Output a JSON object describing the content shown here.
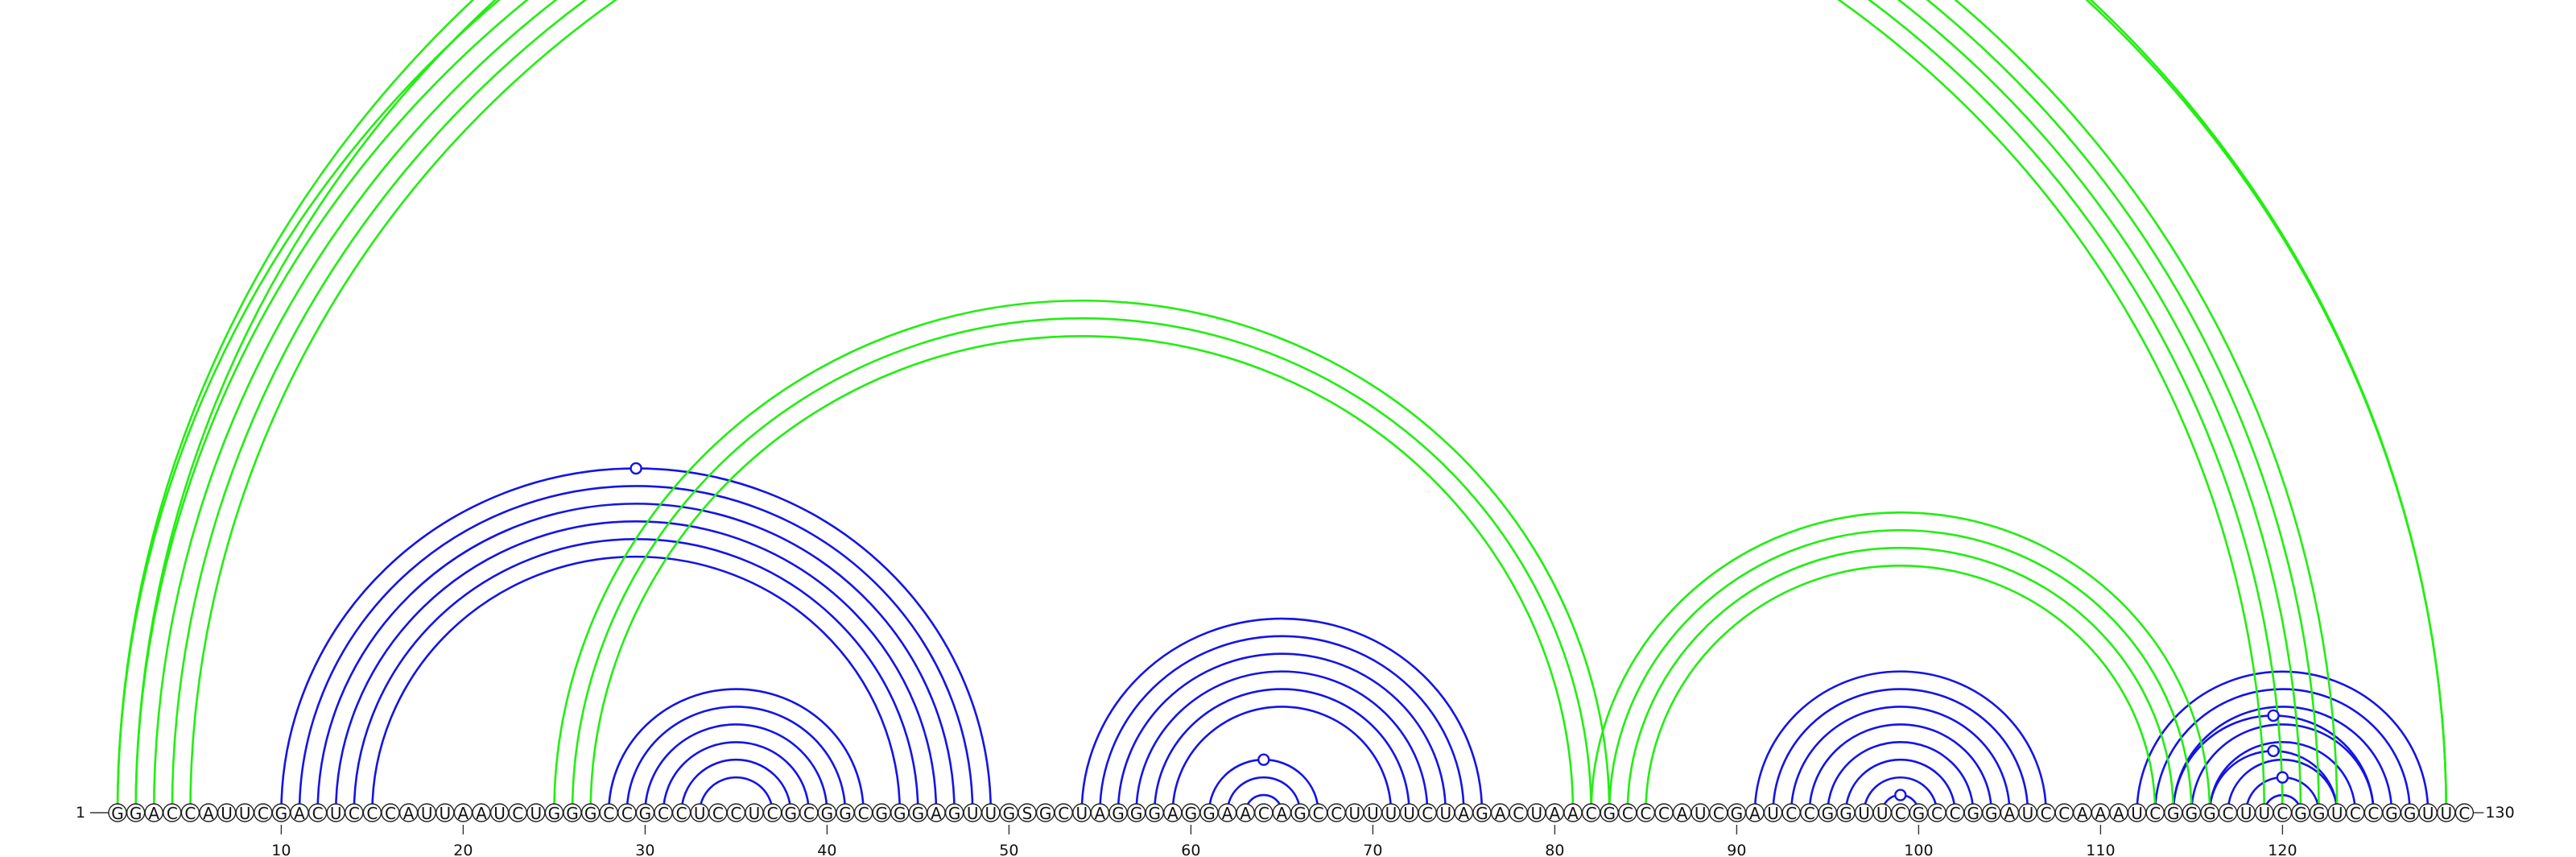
{
  "sequence": "GGACCAUUCGACUCCCAUUAAUCUGGGCCGCCUCCUCGCGGCGGGAGUUGSGCUAGGGAGGAACAGCCUUUUCUAGACUAACGCCCAUCGAUCCGGUUCGCCGGAUCCAAAUCGGGCUUCGGUCCGGUUC",
  "start_label": "1",
  "end_label": "130",
  "tick_positions": [
    10,
    20,
    30,
    40,
    50,
    60,
    70,
    80,
    90,
    100,
    110,
    120
  ],
  "tick_labels": [
    "10",
    "20",
    "30",
    "40",
    "50",
    "60",
    "70",
    "80",
    "90",
    "100",
    "110",
    "120"
  ],
  "colors": {
    "blue": "#1414e6",
    "green": "#22ee11"
  },
  "helices": [
    {
      "color": "blue",
      "pairs": [
        [
          10,
          49
        ],
        [
          11,
          48
        ],
        [
          12,
          47
        ],
        [
          13,
          46
        ],
        [
          14,
          45
        ],
        [
          15,
          44
        ]
      ],
      "marker_on": [
        10,
        49
      ]
    },
    {
      "color": "blue",
      "pairs": [
        [
          28,
          42
        ],
        [
          29,
          41
        ],
        [
          30,
          40
        ],
        [
          31,
          39
        ],
        [
          32,
          38
        ],
        [
          33,
          37
        ]
      ]
    },
    {
      "color": "blue",
      "pairs": [
        [
          54,
          76
        ],
        [
          55,
          75
        ],
        [
          56,
          74
        ],
        [
          57,
          73
        ],
        [
          58,
          72
        ],
        [
          59,
          71
        ]
      ]
    },
    {
      "color": "blue",
      "pairs": [
        [
          61,
          67
        ],
        [
          62,
          66
        ],
        [
          63,
          65
        ]
      ],
      "marker_on": [
        61,
        67
      ]
    },
    {
      "color": "blue",
      "pairs": [
        [
          91,
          107
        ],
        [
          92,
          106
        ],
        [
          93,
          105
        ],
        [
          94,
          104
        ],
        [
          95,
          103
        ],
        [
          96,
          102
        ],
        [
          97,
          101
        ],
        [
          98,
          100
        ]
      ],
      "marker_on": [
        98,
        100
      ]
    },
    {
      "color": "blue",
      "pairs": [
        [
          112,
          128
        ],
        [
          113,
          127
        ],
        [
          114,
          126
        ],
        [
          115,
          125
        ],
        [
          116,
          124
        ],
        [
          117,
          123
        ],
        [
          118,
          122
        ],
        [
          119,
          121
        ]
      ],
      "marker_on": [
        118,
        122
      ]
    },
    {
      "color": "blue",
      "pairs": [
        [
          116,
          123
        ]
      ],
      "marker_on": [
        116,
        123
      ]
    },
    {
      "color": "blue",
      "pairs": [
        [
          114,
          125
        ]
      ],
      "marker_on": [
        114,
        125
      ]
    },
    {
      "color": "green",
      "pairs": [
        [
          1,
          123
        ],
        [
          2,
          122
        ],
        [
          3,
          121
        ],
        [
          4,
          120
        ],
        [
          5,
          119
        ]
      ],
      "marker_on": [
        1,
        129
      ],
      "marker_pairs": [
        [
          1,
          129
        ]
      ]
    },
    {
      "color": "green",
      "pairs": [
        [
          1,
          129
        ],
        [
          2,
          129
        ]
      ]
    },
    {
      "color": "green",
      "pairs": [
        [
          25,
          83
        ],
        [
          26,
          82
        ],
        [
          27,
          81
        ]
      ]
    },
    {
      "color": "green",
      "pairs": [
        [
          82,
          116
        ],
        [
          83,
          115
        ],
        [
          84,
          114
        ],
        [
          85,
          113
        ]
      ]
    }
  ]
}
